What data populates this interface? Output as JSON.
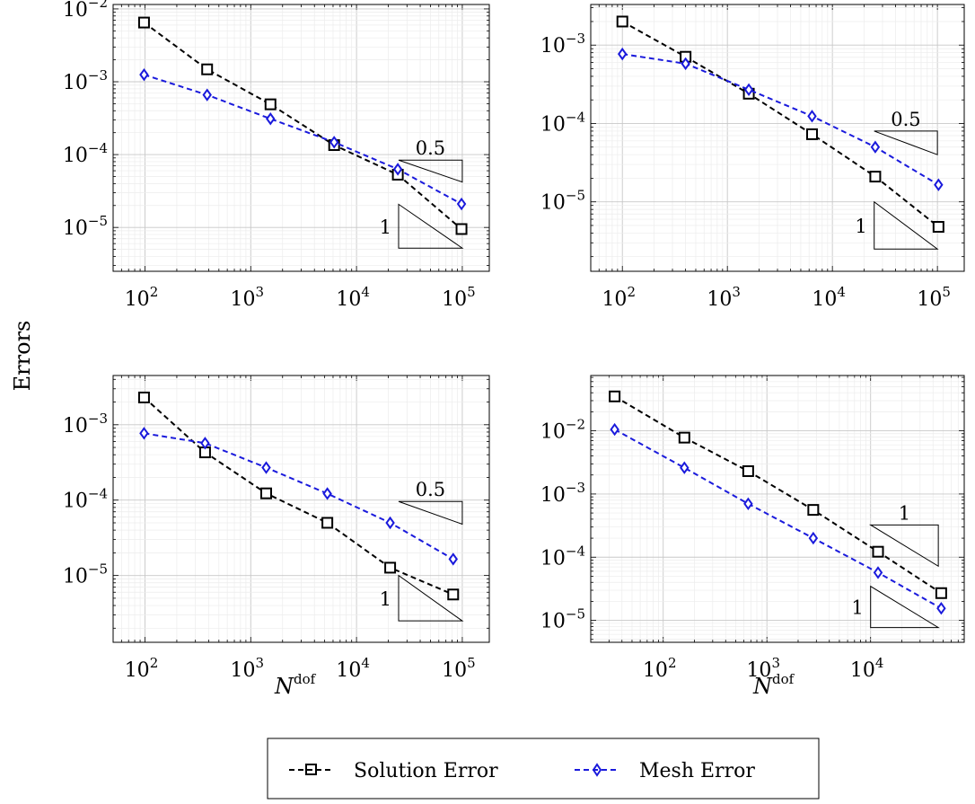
{
  "figure": {
    "ylabel": "Errors",
    "xlabel_base": "N",
    "xlabel_sup": "dof"
  },
  "legend": {
    "items": [
      {
        "label": "Solution Error",
        "color": "#000000",
        "marker": "square"
      },
      {
        "label": "Mesh Error",
        "color": "#1a1adc",
        "marker": "diamond"
      }
    ]
  },
  "chart_data": [
    {
      "type": "line",
      "xscale": "log",
      "yscale": "log",
      "xlim": [
        50,
        180000
      ],
      "ylim": [
        2.5e-06,
        0.0115
      ],
      "x_ticks": [
        100,
        1000,
        10000,
        100000
      ],
      "x_tick_labels": [
        {
          "base": "10",
          "exp": "2"
        },
        {
          "base": "10",
          "exp": "3"
        },
        {
          "base": "10",
          "exp": "4"
        },
        {
          "base": "10",
          "exp": "5"
        }
      ],
      "y_ticks": [
        0.01,
        0.001,
        0.0001,
        1e-05
      ],
      "y_tick_labels": [
        {
          "base": "10",
          "exp": "−2"
        },
        {
          "base": "10",
          "exp": "−3"
        },
        {
          "base": "10",
          "exp": "−4"
        },
        {
          "base": "10",
          "exp": "−5"
        }
      ],
      "grid": true,
      "xlabel": "",
      "ylabel": "",
      "series": [
        {
          "name": "Solution Error",
          "x": [
            98,
            387,
            1537,
            6145,
            24577,
            98305
          ],
          "y": [
            0.0065,
            0.00148,
            0.00049,
            0.000135,
            5.3e-05,
            9.5e-06
          ]
        },
        {
          "name": "Mesh Error",
          "x": [
            98,
            387,
            1537,
            6145,
            24577,
            98305
          ],
          "y": [
            0.00125,
            0.00066,
            0.00031,
            0.000148,
            6.3e-05,
            2.1e-05
          ]
        }
      ],
      "slope_triangles": [
        {
          "label": "0.5",
          "slope": 0.5,
          "x0": 25000,
          "x1": 100000,
          "y_base": 4.2e-05,
          "orientation": "upper"
        },
        {
          "label": "1",
          "slope": 1,
          "x0": 25000,
          "x1": 100000,
          "y_base": 5.2e-06,
          "orientation": "lower"
        }
      ]
    },
    {
      "type": "line",
      "xscale": "log",
      "yscale": "log",
      "xlim": [
        50,
        180000
      ],
      "ylim": [
        1.3e-06,
        0.0033
      ],
      "x_ticks": [
        100,
        1000,
        10000,
        100000
      ],
      "x_tick_labels": [
        {
          "base": "10",
          "exp": "2"
        },
        {
          "base": "10",
          "exp": "3"
        },
        {
          "base": "10",
          "exp": "4"
        },
        {
          "base": "10",
          "exp": "5"
        }
      ],
      "y_ticks": [
        0.001,
        0.0001,
        1e-05
      ],
      "y_tick_labels": [
        {
          "base": "10",
          "exp": "−3"
        },
        {
          "base": "10",
          "exp": "−4"
        },
        {
          "base": "10",
          "exp": "−5"
        }
      ],
      "grid": true,
      "xlabel": "",
      "ylabel": "",
      "series": [
        {
          "name": "Solution Error",
          "x": [
            100,
            400,
            1600,
            6400,
            25600,
            102400
          ],
          "y": [
            0.002,
            0.00071,
            0.00024,
            7.3e-05,
            2.1e-05,
            4.8e-06
          ]
        },
        {
          "name": "Mesh Error",
          "x": [
            100,
            400,
            1600,
            6400,
            25600,
            102400
          ],
          "y": [
            0.00077,
            0.00058,
            0.00027,
            0.000124,
            5e-05,
            1.65e-05
          ]
        }
      ],
      "slope_triangles": [
        {
          "label": "0.5",
          "slope": 0.5,
          "x0": 25000,
          "x1": 100000,
          "y_base": 4e-05,
          "orientation": "upper"
        },
        {
          "label": "1",
          "slope": 1,
          "x0": 25000,
          "x1": 100000,
          "y_base": 2.5e-06,
          "orientation": "lower"
        }
      ]
    },
    {
      "type": "line",
      "xscale": "log",
      "yscale": "log",
      "xlim": [
        50,
        180000
      ],
      "ylim": [
        1.3e-06,
        0.0045
      ],
      "x_ticks": [
        100,
        1000,
        10000,
        100000
      ],
      "x_tick_labels": [
        {
          "base": "10",
          "exp": "2"
        },
        {
          "base": "10",
          "exp": "3"
        },
        {
          "base": "10",
          "exp": "4"
        },
        {
          "base": "10",
          "exp": "5"
        }
      ],
      "y_ticks": [
        0.001,
        0.0001,
        1e-05
      ],
      "y_tick_labels": [
        {
          "base": "10",
          "exp": "−3"
        },
        {
          "base": "10",
          "exp": "−4"
        },
        {
          "base": "10",
          "exp": "−5"
        }
      ],
      "grid": true,
      "xlabel": "",
      "ylabel": "",
      "series": [
        {
          "name": "Solution Error",
          "x": [
            98,
            370,
            1400,
            5300,
            20800,
            82000
          ],
          "y": [
            0.0023,
            0.00043,
            0.000123,
            5e-05,
            1.27e-05,
            5.6e-06
          ]
        },
        {
          "name": "Mesh Error",
          "x": [
            98,
            370,
            1400,
            5300,
            20800,
            82000
          ],
          "y": [
            0.00077,
            0.00057,
            0.00027,
            0.000122,
            5e-05,
            1.65e-05
          ]
        }
      ],
      "slope_triangles": [
        {
          "label": "0.5",
          "slope": 0.5,
          "x0": 25000,
          "x1": 100000,
          "y_base": 4.8e-05,
          "orientation": "upper"
        },
        {
          "label": "1",
          "slope": 1,
          "x0": 25000,
          "x1": 100000,
          "y_base": 2.5e-06,
          "orientation": "lower"
        }
      ]
    },
    {
      "type": "line",
      "xscale": "log",
      "yscale": "log",
      "xlim": [
        20,
        80000
      ],
      "ylim": [
        4.5e-06,
        0.075
      ],
      "x_ticks": [
        100,
        1000,
        10000
      ],
      "x_tick_labels": [
        {
          "base": "10",
          "exp": "2"
        },
        {
          "base": "10",
          "exp": "3"
        },
        {
          "base": "10",
          "exp": "4"
        }
      ],
      "y_ticks": [
        0.01,
        0.001,
        0.0001,
        1e-05
      ],
      "y_tick_labels": [
        {
          "base": "10",
          "exp": "−2"
        },
        {
          "base": "10",
          "exp": "−3"
        },
        {
          "base": "10",
          "exp": "−4"
        },
        {
          "base": "10",
          "exp": "−5"
        }
      ],
      "grid": true,
      "xlabel": "",
      "ylabel": "",
      "series": [
        {
          "name": "Solution Error",
          "x": [
            34,
            160,
            660,
            2800,
            11800,
            48000
          ],
          "y": [
            0.035,
            0.0078,
            0.0023,
            0.00056,
            0.000122,
            2.7e-05
          ]
        },
        {
          "name": "Mesh Error",
          "x": [
            34,
            160,
            660,
            2800,
            11800,
            48000
          ],
          "y": [
            0.0105,
            0.0026,
            0.0007,
            0.0002,
            5.7e-05,
            1.55e-05
          ]
        }
      ],
      "slope_triangles": [
        {
          "label": "1",
          "slope": 1,
          "x0": 10000,
          "x1": 45000,
          "y_base": 7.2e-05,
          "orientation": "upper"
        },
        {
          "label": "1",
          "slope": 1,
          "x0": 10000,
          "x1": 45000,
          "y_base": 7.7e-06,
          "orientation": "lower"
        }
      ]
    }
  ]
}
